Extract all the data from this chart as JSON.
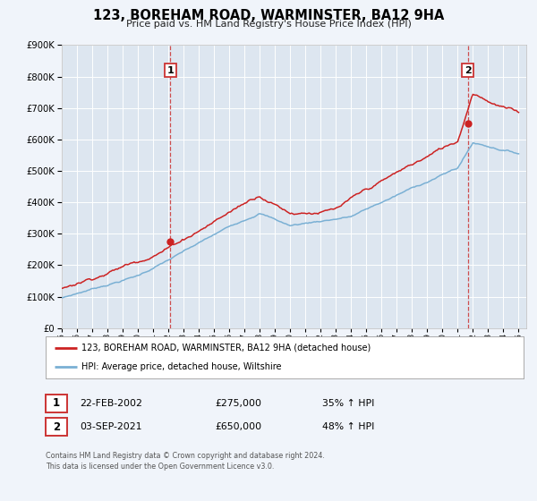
{
  "title": "123, BOREHAM ROAD, WARMINSTER, BA12 9HA",
  "subtitle": "Price paid vs. HM Land Registry's House Price Index (HPI)",
  "background_color": "#f0f4fa",
  "plot_bg_color": "#dde6f0",
  "red_line_label": "123, BOREHAM ROAD, WARMINSTER, BA12 9HA (detached house)",
  "blue_line_label": "HPI: Average price, detached house, Wiltshire",
  "annotation1_date": "22-FEB-2002",
  "annotation1_price": "£275,000",
  "annotation1_hpi": "35% ↑ HPI",
  "annotation2_date": "03-SEP-2021",
  "annotation2_price": "£650,000",
  "annotation2_hpi": "48% ↑ HPI",
  "vline1_x": 2002.13,
  "vline2_x": 2021.67,
  "marker1_x": 2002.13,
  "marker1_y": 275000,
  "marker2_x": 2021.67,
  "marker2_y": 650000,
  "ylim": [
    0,
    900000
  ],
  "xlim": [
    1995.0,
    2025.5
  ],
  "footer": "Contains HM Land Registry data © Crown copyright and database right 2024.\nThis data is licensed under the Open Government Licence v3.0."
}
